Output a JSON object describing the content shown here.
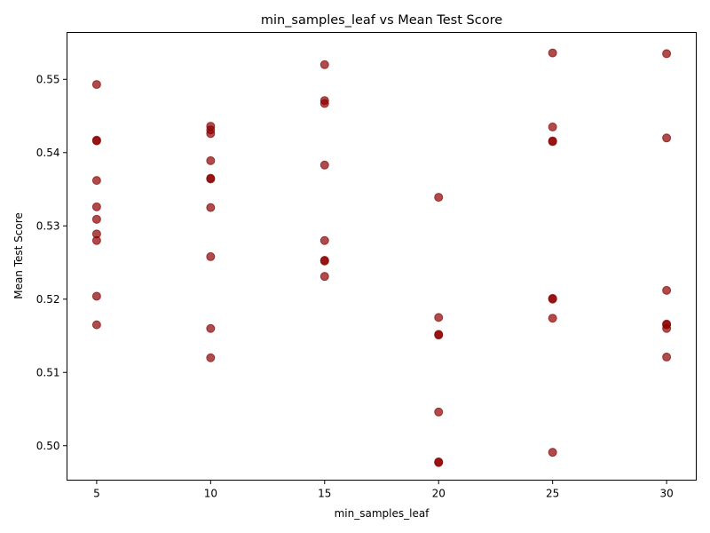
{
  "chart_data": {
    "type": "scatter",
    "title": "min_samples_leaf vs Mean Test Score",
    "xlabel": "min_samples_leaf",
    "ylabel": "Mean Test Score",
    "xlim": [
      3.7,
      31.3
    ],
    "ylim": [
      0.4953,
      0.5564
    ],
    "xticks": [
      5,
      10,
      15,
      20,
      25,
      30
    ],
    "xtick_labels": [
      "5",
      "10",
      "15",
      "20",
      "25",
      "30"
    ],
    "yticks": [
      0.5,
      0.51,
      0.52,
      0.53,
      0.54,
      0.55
    ],
    "ytick_labels": [
      "0.50",
      "0.51",
      "0.52",
      "0.53",
      "0.54",
      "0.55"
    ],
    "grid": false,
    "marker_color": "#8B0000",
    "marker_alpha": 0.7,
    "points": [
      {
        "x": 5,
        "y": 0.5493
      },
      {
        "x": 5,
        "y": 0.5417
      },
      {
        "x": 5,
        "y": 0.5416
      },
      {
        "x": 5,
        "y": 0.5362
      },
      {
        "x": 5,
        "y": 0.5326
      },
      {
        "x": 5,
        "y": 0.5309
      },
      {
        "x": 5,
        "y": 0.5289
      },
      {
        "x": 5,
        "y": 0.528
      },
      {
        "x": 5,
        "y": 0.5204
      },
      {
        "x": 5,
        "y": 0.5165
      },
      {
        "x": 10,
        "y": 0.5436
      },
      {
        "x": 10,
        "y": 0.5431
      },
      {
        "x": 10,
        "y": 0.5426
      },
      {
        "x": 10,
        "y": 0.5389
      },
      {
        "x": 10,
        "y": 0.5365
      },
      {
        "x": 10,
        "y": 0.5364
      },
      {
        "x": 10,
        "y": 0.5325
      },
      {
        "x": 10,
        "y": 0.5258
      },
      {
        "x": 10,
        "y": 0.516
      },
      {
        "x": 10,
        "y": 0.512
      },
      {
        "x": 15,
        "y": 0.552
      },
      {
        "x": 15,
        "y": 0.5471
      },
      {
        "x": 15,
        "y": 0.5467
      },
      {
        "x": 15,
        "y": 0.5383
      },
      {
        "x": 15,
        "y": 0.528
      },
      {
        "x": 15,
        "y": 0.5253
      },
      {
        "x": 15,
        "y": 0.5252
      },
      {
        "x": 15,
        "y": 0.5231
      },
      {
        "x": 20,
        "y": 0.5339
      },
      {
        "x": 20,
        "y": 0.5175
      },
      {
        "x": 20,
        "y": 0.5152
      },
      {
        "x": 20,
        "y": 0.5151
      },
      {
        "x": 20,
        "y": 0.5046
      },
      {
        "x": 20,
        "y": 0.4978
      },
      {
        "x": 20,
        "y": 0.4977
      },
      {
        "x": 25,
        "y": 0.5536
      },
      {
        "x": 25,
        "y": 0.5435
      },
      {
        "x": 25,
        "y": 0.5416
      },
      {
        "x": 25,
        "y": 0.5415
      },
      {
        "x": 25,
        "y": 0.5201
      },
      {
        "x": 25,
        "y": 0.52
      },
      {
        "x": 25,
        "y": 0.5174
      },
      {
        "x": 25,
        "y": 0.4991
      },
      {
        "x": 30,
        "y": 0.5535
      },
      {
        "x": 30,
        "y": 0.542
      },
      {
        "x": 30,
        "y": 0.5212
      },
      {
        "x": 30,
        "y": 0.5166
      },
      {
        "x": 30,
        "y": 0.5165
      },
      {
        "x": 30,
        "y": 0.516
      },
      {
        "x": 30,
        "y": 0.5121
      }
    ]
  }
}
